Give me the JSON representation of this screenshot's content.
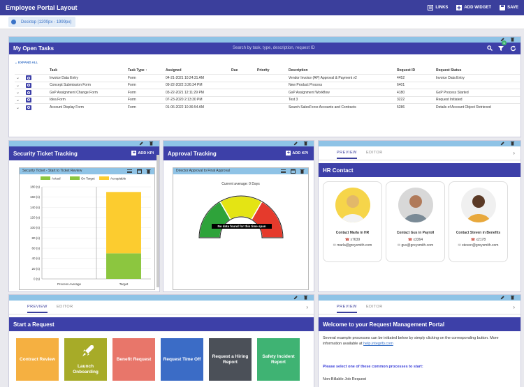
{
  "app": {
    "title": "Employee Portal Layout",
    "links_label": "LINKS",
    "add_widget_label": "ADD WIDGET",
    "save_label": "SAVE",
    "device_label": "Desktop (1200px - 1999px)"
  },
  "tasks": {
    "title": "My Open Tasks",
    "search_placeholder": "Search by task, type, description, request ID",
    "filter_badge": "1",
    "expand_all": "EXPAND ALL",
    "columns": [
      "Task",
      "Task Type ↑",
      "Assigned",
      "Due",
      "Priority",
      "Description",
      "Request ID",
      "Request Status"
    ],
    "rows": [
      [
        "Invoice Data Entry",
        "Form",
        "04-21-2021 10:24:31 AM",
        "",
        "",
        "Vendor Invoice (AP) Approval & Payment v2",
        "4452",
        "Invoice Data Entry"
      ],
      [
        "Concept Submission Form",
        "Form",
        "09-22-2022 3:26:34 PM",
        "",
        "",
        "New Product Process",
        "6401",
        ""
      ],
      [
        "GxP Assignment Change Form",
        "Form",
        "03-22-2021 12:11:29 PM",
        "",
        "",
        "GxP Assignment Workflow",
        "4180",
        "GxP Process Started"
      ],
      [
        "Idea Form",
        "Form",
        "07-23-2020 2:13:30 PM",
        "",
        "",
        "Test 3",
        "3222",
        "Request Initiated"
      ],
      [
        "Account Display Form",
        "Form",
        "01-06-2022 10:36:54 AM",
        "",
        "",
        "Search SalesForce Accounts and Contracts",
        "5286",
        "Details of Account Object Retrieved"
      ]
    ]
  },
  "security": {
    "title": "Security Ticket Tracking",
    "add_kpi": "ADD KPI",
    "chart_title": "Security Ticket - Start to Ticket Review"
  },
  "approval": {
    "title": "Approval Tracking",
    "add_kpi": "ADD KPI",
    "chart_title": "Director Approval to Final Approval",
    "current_average": "Current average: 0 Days",
    "no_data": "No data found for this time span"
  },
  "hr": {
    "tab_preview": "PREVIEW",
    "tab_editor": "EDITOR",
    "title": "HR Contact",
    "contacts": [
      {
        "name": "Contact Marla in HR",
        "phone": "x7639",
        "email": "marla@greysmith.com"
      },
      {
        "name": "Contact Gus in Payroll",
        "phone": "x3364",
        "email": "gus@greysmith.com"
      },
      {
        "name": "Contact Steven in Benefits",
        "phone": "x2178",
        "email": "steven@greysmith.com"
      }
    ]
  },
  "start_request": {
    "tab_preview": "PREVIEW",
    "tab_editor": "EDITOR",
    "title": "Start a Request",
    "tiles": [
      {
        "label": "Contract Review",
        "color": "#f5b041"
      },
      {
        "label": "Launch Onboarding",
        "color": "#a7ab28"
      },
      {
        "label": "Benefit Request",
        "color": "#e8766a"
      },
      {
        "label": "Request Time Off",
        "color": "#3b6cc6"
      },
      {
        "label": "Request a Hiring Report",
        "color": "#4b5058"
      },
      {
        "label": "Safety Incident Report",
        "color": "#3fb373"
      }
    ]
  },
  "welcome": {
    "tab_preview": "PREVIEW",
    "tab_editor": "EDITOR",
    "title": "Welcome to your Request Management Portal",
    "body": "Several example processes can be initiated below by simply clicking on the corresponding button. More information available at",
    "link": "help.integrify.com",
    "prompt": "Please select one of these common processes to start:",
    "first_item": "Non-Billable Job Request"
  },
  "chart_data": [
    {
      "type": "bar",
      "title": "Security Ticket - Start to Ticket Review",
      "categories": [
        "Process Average",
        "Target"
      ],
      "series": [
        {
          "name": "Actual",
          "values": [
            0,
            0
          ],
          "color": "#8cc63f"
        },
        {
          "name": "On Target",
          "values": [
            0,
            50
          ],
          "color": "#8cc63f"
        },
        {
          "name": "Acceptable",
          "values": [
            0,
            120
          ],
          "color": "#fccc2f"
        }
      ],
      "ylim": [
        0,
        180
      ],
      "yticks": [
        "0 (s)",
        "20 (s)",
        "40 (s)",
        "60 (s)",
        "80 (s)",
        "100 (s)",
        "120 (s)",
        "140 (s)",
        "160 (s)",
        "180 (s)"
      ],
      "legend": "top"
    },
    {
      "type": "gauge",
      "title": "Director Approval to Final Approval",
      "bands": [
        {
          "color": "#2ea33a"
        },
        {
          "color": "#e4e414"
        },
        {
          "color": "#e53a2c"
        }
      ],
      "value": 0
    }
  ]
}
